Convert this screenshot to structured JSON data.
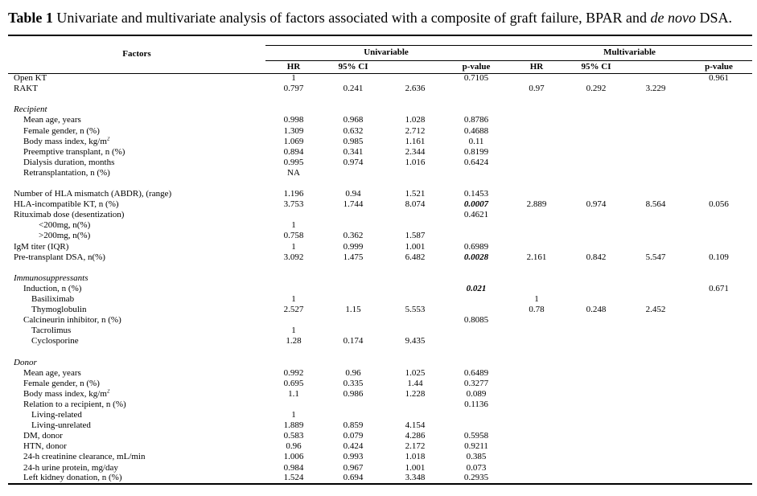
{
  "title": {
    "label": "Table 1",
    "main": " Univariate and multivariate analysis of factors associated with a composite of graft failure, BPAR and ",
    "emphasis": "de novo",
    "suffix": " DSA."
  },
  "header": {
    "factors": "Factors",
    "univariable": "Univariable",
    "multivariable": "Multivariable",
    "subcols": [
      "HR",
      "95% CI",
      "",
      "p-value",
      "HR",
      "95% CI",
      "",
      "p-value"
    ]
  },
  "rows": [
    {
      "label": "Open KT",
      "indent": 0,
      "v": [
        "1",
        "",
        "",
        "0.7105",
        "",
        "",
        "",
        "0.961"
      ]
    },
    {
      "label": "RAKT",
      "indent": 0,
      "v": [
        "0.797",
        "0.241",
        "2.636",
        "",
        "0.97",
        "0.292",
        "3.229",
        ""
      ]
    },
    {
      "blank": true
    },
    {
      "label": "Recipient",
      "indent": 0,
      "section": true,
      "v": [
        "",
        "",
        "",
        "",
        "",
        "",
        "",
        ""
      ]
    },
    {
      "label": "Mean age, years",
      "indent": 1,
      "v": [
        "0.998",
        "0.968",
        "1.028",
        "0.8786",
        "",
        "",
        "",
        ""
      ]
    },
    {
      "label": "Female gender, n (%)",
      "indent": 1,
      "v": [
        "1.309",
        "0.632",
        "2.712",
        "0.4688",
        "",
        "",
        "",
        ""
      ]
    },
    {
      "label": "Body mass index, kg/m",
      "sup": "2",
      "indent": 1,
      "v": [
        "1.069",
        "0.985",
        "1.161",
        "0.11",
        "",
        "",
        "",
        ""
      ]
    },
    {
      "label": "Preemptive transplant, n (%)",
      "indent": 1,
      "v": [
        "0.894",
        "0.341",
        "2.344",
        "0.8199",
        "",
        "",
        "",
        ""
      ]
    },
    {
      "label": "Dialysis duration, months",
      "indent": 1,
      "v": [
        "0.995",
        "0.974",
        "1.016",
        "0.6424",
        "",
        "",
        "",
        ""
      ]
    },
    {
      "label": "Retransplantation, n (%)",
      "indent": 1,
      "v": [
        "NA",
        "",
        "",
        "",
        "",
        "",
        "",
        ""
      ]
    },
    {
      "blank": true
    },
    {
      "label": "Number of HLA mismatch (ABDR), (range)",
      "indent": 0,
      "v": [
        "1.196",
        "0.94",
        "1.521",
        "0.1453",
        "",
        "",
        "",
        ""
      ]
    },
    {
      "label": "HLA-incompatible KT, n (%)",
      "indent": 0,
      "v": [
        "3.753",
        "1.744",
        "8.074",
        "0.0007",
        "2.889",
        "0.974",
        "8.564",
        "0.056"
      ],
      "em": [
        3
      ]
    },
    {
      "label": "Rituximab dose (desentization)",
      "indent": 0,
      "v": [
        "",
        "",
        "",
        "0.4621",
        "",
        "",
        "",
        ""
      ]
    },
    {
      "label": "<200mg, n(%)",
      "indent": 3,
      "v": [
        "1",
        "",
        "",
        "",
        "",
        "",
        "",
        ""
      ]
    },
    {
      "label": ">200mg, n(%)",
      "indent": 3,
      "v": [
        "0.758",
        "0.362",
        "1.587",
        "",
        "",
        "",
        "",
        ""
      ]
    },
    {
      "label": "IgM titer (IQR)",
      "indent": 0,
      "v": [
        "1",
        "0.999",
        "1.001",
        "0.6989",
        "",
        "",
        "",
        ""
      ]
    },
    {
      "label": "Pre-transplant DSA, n(%)",
      "indent": 0,
      "v": [
        "3.092",
        "1.475",
        "6.482",
        "0.0028",
        "2.161",
        "0.842",
        "5.547",
        "0.109"
      ],
      "em": [
        3
      ]
    },
    {
      "blank": true
    },
    {
      "label": "Immunosuppressants",
      "indent": 0,
      "section": true,
      "v": [
        "",
        "",
        "",
        "",
        "",
        "",
        "",
        ""
      ]
    },
    {
      "label": "Induction, n (%)",
      "indent": 1,
      "v": [
        "",
        "",
        "",
        "0.021",
        "",
        "",
        "",
        "0.671"
      ],
      "em": [
        3
      ]
    },
    {
      "label": "Basiliximab",
      "indent": 2,
      "v": [
        "1",
        "",
        "",
        "",
        "1",
        "",
        "",
        ""
      ]
    },
    {
      "label": "Thymoglobulin",
      "indent": 2,
      "v": [
        "2.527",
        "1.15",
        "5.553",
        "",
        "0.78",
        "0.248",
        "2.452",
        ""
      ]
    },
    {
      "label": "Calcineurin inhibitor, n (%)",
      "indent": 1,
      "v": [
        "",
        "",
        "",
        "0.8085",
        "",
        "",
        "",
        ""
      ]
    },
    {
      "label": "Tacrolimus",
      "indent": 2,
      "v": [
        "1",
        "",
        "",
        "",
        "",
        "",
        "",
        ""
      ]
    },
    {
      "label": "Cyclosporine",
      "indent": 2,
      "v": [
        "1.28",
        "0.174",
        "9.435",
        "",
        "",
        "",
        "",
        ""
      ]
    },
    {
      "blank": true
    },
    {
      "label": "Donor",
      "indent": 0,
      "section": true,
      "v": [
        "",
        "",
        "",
        "",
        "",
        "",
        "",
        ""
      ]
    },
    {
      "label": "Mean age, years",
      "indent": 1,
      "v": [
        "0.992",
        "0.96",
        "1.025",
        "0.6489",
        "",
        "",
        "",
        ""
      ]
    },
    {
      "label": "Female gender, n (%)",
      "indent": 1,
      "v": [
        "0.695",
        "0.335",
        "1.44",
        "0.3277",
        "",
        "",
        "",
        ""
      ]
    },
    {
      "label": "Body mass index, kg/m",
      "sup": "2",
      "indent": 1,
      "v": [
        "1.1",
        "0.986",
        "1.228",
        "0.089",
        "",
        "",
        "",
        ""
      ]
    },
    {
      "label": "Relation to a recipient, n (%)",
      "indent": 1,
      "v": [
        "",
        "",
        "",
        "0.1136",
        "",
        "",
        "",
        ""
      ]
    },
    {
      "label": "Living-related",
      "indent": 2,
      "v": [
        "1",
        "",
        "",
        "",
        "",
        "",
        "",
        ""
      ]
    },
    {
      "label": "Living-unrelated",
      "indent": 2,
      "v": [
        "1.889",
        "0.859",
        "4.154",
        "",
        "",
        "",
        "",
        ""
      ]
    },
    {
      "label": "DM, donor",
      "indent": 1,
      "v": [
        "0.583",
        "0.079",
        "4.286",
        "0.5958",
        "",
        "",
        "",
        ""
      ]
    },
    {
      "label": "HTN, donor",
      "indent": 1,
      "v": [
        "0.96",
        "0.424",
        "2.172",
        "0.9211",
        "",
        "",
        "",
        ""
      ]
    },
    {
      "label": "24-h creatinine clearance, mL/min",
      "indent": 1,
      "v": [
        "1.006",
        "0.993",
        "1.018",
        "0.385",
        "",
        "",
        "",
        ""
      ]
    },
    {
      "label": "24-h urine protein, mg/day",
      "indent": 1,
      "v": [
        "0.984",
        "0.967",
        "1.001",
        "0.073",
        "",
        "",
        "",
        ""
      ]
    },
    {
      "label": "Left kidney donation, n (%)",
      "indent": 1,
      "v": [
        "1.524",
        "0.694",
        "3.348",
        "0.2935",
        "",
        "",
        "",
        ""
      ]
    }
  ]
}
